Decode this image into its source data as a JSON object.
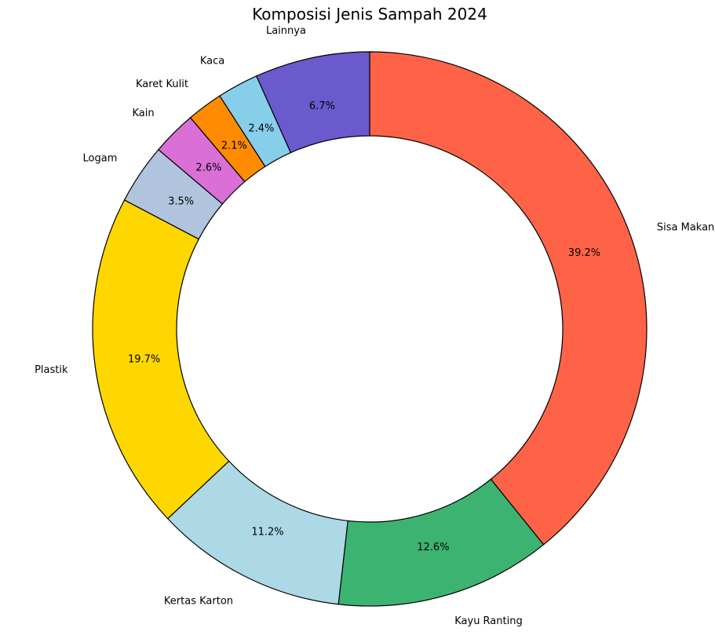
{
  "chart_data": {
    "type": "pie",
    "variant": "donut",
    "title": "Komposisi Jenis Sampah 2024",
    "start_angle_deg": 90,
    "direction": "clockwise",
    "slices": [
      {
        "label": "Sisa Makanan",
        "value": 39.2,
        "pct_label": "39.2%",
        "color": "#FF6347"
      },
      {
        "label": "Kayu Ranting",
        "value": 12.6,
        "pct_label": "12.6%",
        "color": "#3CB371"
      },
      {
        "label": "Kertas Karton",
        "value": 11.2,
        "pct_label": "11.2%",
        "color": "#ADD8E6"
      },
      {
        "label": "Plastik",
        "value": 19.7,
        "pct_label": "19.7%",
        "color": "#FFD700"
      },
      {
        "label": "Logam",
        "value": 3.5,
        "pct_label": "3.5%",
        "color": "#B0C4DE"
      },
      {
        "label": "Kain",
        "value": 2.6,
        "pct_label": "2.6%",
        "color": "#DA70D6"
      },
      {
        "label": "Karet Kulit",
        "value": 2.1,
        "pct_label": "2.1%",
        "color": "#FF8C00"
      },
      {
        "label": "Kaca",
        "value": 2.4,
        "pct_label": "2.4%",
        "color": "#87CEEB"
      },
      {
        "label": "Lainnya",
        "value": 6.7,
        "pct_label": "6.7%",
        "color": "#6A5ACD"
      }
    ],
    "edge_color": "#000000"
  }
}
